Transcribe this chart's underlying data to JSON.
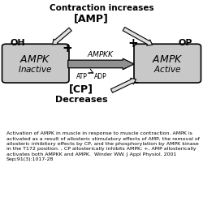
{
  "title": "Contraction increases",
  "amp_label": "[AMP]",
  "cp_label": "[CP]",
  "decreases_label": "Decreases",
  "left_box_label1": "AMPK",
  "left_box_label2": "Inactive",
  "right_box_label1": "AMPK",
  "right_box_label2": "Active",
  "oh_label": "OH",
  "op_label": "OP",
  "ampkk_label": "AMPKK",
  "atp_label": "ATP",
  "adp_label": "ADP",
  "plus_left": "+",
  "plus_right": "+",
  "minus_right": "−",
  "caption": "Activation of AMPK in muscle in response to muscle contraction. AMPK is activated as a result of allosteric stimulatory effects of AMP, the removal of allosteric inhibitory effects by CP, and the phosphorylation by AMPK kinase in the T172 position. , CP allosterically inhibits AMPK; +, AMP allosterically activates both AMPKK and AMPK.  Winder WW. J Appl Physiol. 2001 Sep;91(3):1017-28",
  "bg_color": "#ffffff",
  "box_fill": "#c8c8c8",
  "arrow_fill": "#909090",
  "outline_arrow_fill": "#e0e0e0"
}
